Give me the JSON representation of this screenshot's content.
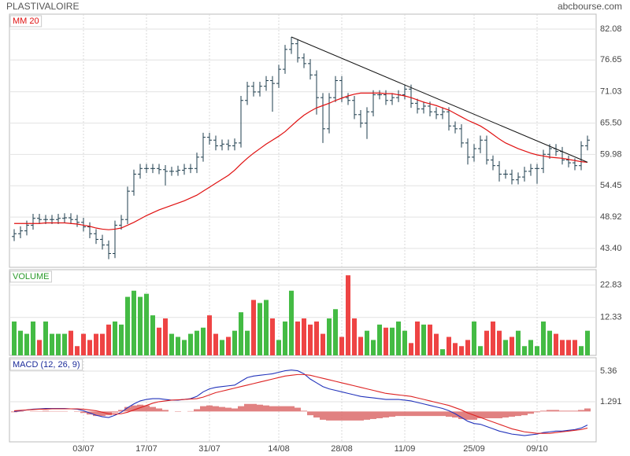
{
  "header": {
    "title": "PLASTIVALOIRE",
    "source": "abcbourse.com"
  },
  "chart_data": [
    {
      "type": "ohlc",
      "color": "#1d3c4c",
      "open": [
        45.5,
        46.0,
        46.5,
        47.5,
        48.7,
        48.5,
        48.5,
        48.5,
        48.7,
        48.8,
        48.5,
        48.0,
        47.2,
        46.0,
        45.0,
        44.0,
        42.5,
        47.5,
        48.5,
        53.5,
        56.5,
        57.5,
        57.5,
        57.5,
        57.3,
        57.0,
        57.0,
        57.2,
        57.5,
        57.5,
        59.5,
        63.0,
        62.5,
        61.5,
        61.8,
        61.5,
        62.0,
        69.5,
        72.0,
        71.0,
        72.0,
        73.0,
        72.5,
        75.0,
        78.5,
        79.5,
        77.0,
        76.0,
        74.0,
        70.0,
        64.5,
        70.0,
        73.0,
        70.0,
        69.5,
        67.0,
        65.5,
        67.5,
        70.5,
        70.5,
        69.5,
        70.0,
        70.5,
        71.5,
        69.0,
        68.0,
        68.5,
        67.5,
        67.0,
        67.5,
        65.0,
        64.5,
        62.0,
        59.5,
        61.0,
        62.5,
        59.0,
        58.0,
        56.5,
        56.5,
        55.5,
        56.0,
        57.0,
        57.5,
        57.5,
        60.0,
        61.0,
        60.5,
        59.0,
        58.5,
        58.0,
        61.5
      ],
      "high": [
        46.8,
        47.3,
        48.3,
        49.5,
        49.5,
        49.3,
        49.3,
        49.5,
        49.6,
        49.6,
        49.3,
        48.8,
        48.0,
        46.8,
        45.8,
        44.8,
        48.3,
        49.3,
        54.3,
        57.3,
        58.3,
        58.3,
        58.3,
        58.3,
        58.1,
        57.8,
        58.0,
        58.3,
        58.3,
        60.3,
        63.8,
        63.8,
        63.3,
        62.6,
        62.6,
        62.8,
        70.3,
        72.8,
        72.8,
        72.8,
        73.8,
        73.8,
        75.8,
        79.3,
        80.7,
        80.3,
        77.8,
        76.8,
        74.8,
        70.8,
        70.8,
        73.8,
        73.8,
        70.8,
        70.3,
        67.8,
        68.3,
        71.3,
        71.3,
        71.3,
        70.8,
        71.3,
        72.3,
        72.3,
        69.8,
        69.3,
        69.3,
        68.3,
        68.3,
        68.3,
        65.8,
        65.3,
        62.8,
        61.8,
        63.3,
        63.3,
        59.8,
        58.8,
        57.3,
        57.3,
        56.8,
        57.8,
        58.3,
        58.3,
        60.8,
        61.8,
        61.8,
        61.3,
        59.8,
        59.3,
        62.3,
        63.3
      ],
      "low": [
        44.7,
        45.2,
        45.7,
        46.7,
        47.7,
        47.7,
        47.7,
        47.7,
        47.9,
        47.7,
        47.2,
        46.4,
        45.2,
        44.2,
        43.2,
        41.5,
        41.7,
        46.7,
        47.7,
        52.7,
        55.7,
        56.7,
        56.7,
        56.5,
        54.5,
        56.2,
        56.2,
        56.4,
        56.7,
        56.7,
        58.7,
        61.7,
        60.7,
        60.7,
        60.7,
        60.7,
        61.2,
        68.7,
        70.2,
        70.2,
        71.2,
        67.5,
        71.7,
        74.2,
        77.7,
        76.2,
        75.2,
        73.2,
        67.0,
        62.0,
        63.7,
        69.2,
        69.2,
        68.7,
        66.2,
        64.7,
        62.7,
        66.7,
        69.7,
        68.7,
        68.7,
        69.2,
        69.7,
        68.2,
        67.2,
        67.2,
        66.7,
        66.2,
        66.2,
        64.2,
        63.7,
        61.2,
        58.2,
        58.7,
        60.2,
        58.2,
        57.2,
        55.2,
        55.7,
        54.7,
        54.7,
        55.2,
        56.2,
        54.8,
        56.7,
        59.2,
        59.7,
        58.2,
        57.7,
        57.2,
        57.2,
        60.7
      ],
      "close": [
        46.0,
        46.5,
        47.5,
        48.7,
        48.5,
        48.5,
        48.5,
        48.7,
        48.8,
        48.5,
        48.0,
        47.2,
        46.0,
        45.0,
        44.0,
        42.5,
        47.5,
        48.5,
        53.5,
        56.5,
        57.5,
        57.5,
        57.5,
        57.3,
        57.0,
        57.0,
        57.2,
        57.5,
        57.5,
        59.5,
        63.0,
        62.5,
        61.5,
        61.8,
        61.5,
        62.0,
        69.5,
        72.0,
        71.0,
        72.0,
        73.0,
        72.5,
        75.0,
        78.5,
        79.5,
        77.0,
        76.0,
        74.0,
        70.0,
        64.5,
        70.0,
        73.0,
        70.0,
        69.5,
        67.0,
        65.5,
        67.5,
        70.5,
        70.5,
        69.5,
        70.0,
        70.5,
        71.5,
        69.0,
        68.0,
        68.5,
        67.5,
        67.0,
        67.5,
        65.0,
        64.5,
        62.0,
        59.5,
        61.0,
        62.5,
        59.0,
        58.0,
        56.5,
        56.5,
        55.5,
        56.0,
        57.0,
        57.5,
        57.5,
        60.0,
        61.0,
        60.5,
        59.0,
        58.5,
        58.0,
        61.5,
        62.5
      ],
      "overlays": [
        {
          "name": "MM 20",
          "color": "#e01010",
          "values": [
            47.8,
            47.8,
            47.8,
            47.8,
            47.8,
            47.9,
            47.9,
            47.9,
            47.9,
            47.8,
            47.7,
            47.5,
            47.3,
            47.0,
            46.8,
            46.7,
            46.8,
            47.0,
            47.5,
            48.0,
            48.6,
            49.2,
            49.7,
            50.2,
            50.6,
            51.0,
            51.4,
            51.8,
            52.3,
            52.8,
            53.5,
            54.2,
            54.9,
            55.6,
            56.3,
            57.2,
            58.3,
            59.3,
            60.2,
            61.0,
            61.8,
            62.5,
            63.2,
            64.0,
            65.0,
            66.0,
            66.9,
            67.6,
            68.2,
            68.6,
            69.0,
            69.5,
            69.9,
            70.3,
            70.6,
            70.8,
            70.8,
            70.8,
            70.8,
            70.7,
            70.7,
            70.5,
            70.3,
            70.0,
            69.6,
            69.2,
            68.9,
            68.6,
            68.2,
            67.8,
            67.2,
            66.6,
            66.0,
            65.5,
            65.0,
            64.3,
            63.5,
            62.7,
            62.0,
            61.5,
            61.0,
            60.6,
            60.2,
            59.9,
            59.7,
            59.5,
            59.4,
            59.3,
            59.1,
            58.9,
            58.7,
            58.6
          ]
        }
      ],
      "trendline": {
        "color": "#111111",
        "x": [
          44,
          91
        ],
        "values": [
          80.7,
          58.6
        ]
      },
      "ylim": [
        40.07,
        84.72
      ],
      "yticks": [
        82.08,
        76.65,
        71.03,
        {
          "value": 65.5,
          "label": "65.50"
        },
        59.98,
        54.45,
        48.92,
        {
          "value": 43.4,
          "label": "43.40"
        }
      ],
      "xticks": [
        {
          "value": 11,
          "label": "03/07"
        },
        {
          "value": 21,
          "label": "17/07"
        },
        {
          "value": 31,
          "label": "31/07"
        },
        {
          "value": 42,
          "label": "14/08"
        },
        {
          "value": 52,
          "label": "28/08"
        },
        {
          "value": 62,
          "label": "11/09"
        },
        {
          "value": 73,
          "label": "25/09"
        },
        {
          "value": 83,
          "label": "09/10"
        }
      ],
      "grid": true
    },
    {
      "type": "bar",
      "title": "VOLUME",
      "up_color": "#44bb44",
      "down_color": "#ee4444",
      "values": [
        11,
        8,
        7,
        11,
        5,
        11,
        7,
        7,
        7,
        8,
        3,
        7,
        5,
        7,
        7,
        10,
        11,
        10,
        19,
        21,
        19,
        20,
        13,
        9,
        12,
        7,
        6,
        5,
        7,
        8,
        9,
        13,
        7,
        5,
        6,
        8,
        14,
        8,
        18,
        17,
        18,
        12,
        5,
        11,
        21,
        11,
        12,
        10,
        11,
        7,
        12,
        15,
        6,
        26,
        12,
        6,
        8,
        5,
        10,
        9,
        9,
        11,
        8,
        4,
        11,
        10,
        10,
        7,
        2,
        6,
        4,
        3,
        5,
        11,
        3,
        8,
        11,
        8,
        5,
        6,
        8,
        3,
        5,
        3,
        11,
        8,
        7,
        5,
        5,
        5,
        3,
        8
      ],
      "ylim": [
        0,
        27.83
      ],
      "yticks": [
        22.83,
        12.33
      ],
      "grid": true
    },
    {
      "type": "line",
      "title": "MACD (12, 26, 9)",
      "series": [
        {
          "color": "#2233bb",
          "values": [
            0.0,
            0.1,
            0.2,
            0.3,
            0.35,
            0.4,
            0.4,
            0.4,
            0.4,
            0.35,
            0.3,
            0.1,
            -0.2,
            -0.5,
            -0.7,
            -0.8,
            -0.5,
            -0.1,
            0.5,
            1.0,
            1.4,
            1.6,
            1.7,
            1.7,
            1.6,
            1.5,
            1.5,
            1.6,
            1.7,
            2.0,
            2.6,
            3.0,
            3.2,
            3.3,
            3.4,
            3.5,
            4.0,
            4.5,
            4.7,
            4.8,
            4.9,
            5.0,
            5.2,
            5.4,
            5.5,
            5.4,
            5.0,
            4.3,
            3.8,
            3.3,
            3.0,
            2.8,
            2.6,
            2.4,
            2.2,
            2.0,
            1.9,
            1.8,
            1.7,
            1.6,
            1.6,
            1.6,
            1.5,
            1.4,
            1.2,
            1.0,
            0.8,
            0.6,
            0.4,
            0.1,
            -0.3,
            -0.8,
            -1.3,
            -1.6,
            -1.7,
            -2.0,
            -2.3,
            -2.6,
            -2.8,
            -3.0,
            -3.1,
            -3.2,
            -3.1,
            -3.0,
            -2.8,
            -2.7,
            -2.6,
            -2.6,
            -2.5,
            -2.4,
            -2.2,
            -1.8
          ]
        },
        {
          "color": "#dd2222",
          "values": [
            0.1,
            0.15,
            0.2,
            0.25,
            0.3,
            0.3,
            0.35,
            0.35,
            0.35,
            0.35,
            0.35,
            0.3,
            0.2,
            0.1,
            -0.1,
            -0.3,
            -0.35,
            -0.3,
            -0.1,
            0.2,
            0.5,
            0.8,
            1.1,
            1.3,
            1.4,
            1.5,
            1.55,
            1.6,
            1.65,
            1.7,
            1.9,
            2.2,
            2.5,
            2.7,
            2.9,
            3.1,
            3.3,
            3.5,
            3.7,
            3.9,
            4.1,
            4.3,
            4.5,
            4.7,
            4.8,
            4.9,
            4.9,
            4.8,
            4.6,
            4.4,
            4.2,
            4.0,
            3.8,
            3.6,
            3.4,
            3.2,
            3.0,
            2.8,
            2.6,
            2.4,
            2.3,
            2.2,
            2.1,
            2.0,
            1.8,
            1.6,
            1.4,
            1.2,
            1.0,
            0.8,
            0.5,
            0.2,
            -0.2,
            -0.5,
            -0.8,
            -1.1,
            -1.4,
            -1.7,
            -2.0,
            -2.3,
            -2.5,
            -2.7,
            -2.8,
            -2.9,
            -2.9,
            -2.9,
            -2.8,
            -2.7,
            -2.6,
            -2.5,
            -2.4,
            -2.2
          ]
        }
      ],
      "histogram": {
        "color": "#dc6b6b",
        "values": [
          -0.1,
          -0.05,
          0.0,
          0.05,
          0.05,
          0.1,
          0.05,
          0.05,
          0.05,
          0.0,
          -0.05,
          -0.2,
          -0.4,
          -0.6,
          -0.6,
          -0.5,
          -0.15,
          0.2,
          0.6,
          0.8,
          0.9,
          0.8,
          0.6,
          0.4,
          0.2,
          0.0,
          -0.05,
          0.0,
          0.05,
          0.3,
          0.7,
          0.8,
          0.7,
          0.6,
          0.5,
          0.4,
          0.7,
          1.0,
          1.0,
          0.9,
          0.8,
          0.7,
          0.7,
          0.7,
          0.7,
          0.5,
          0.1,
          -0.5,
          -0.8,
          -1.1,
          -1.2,
          -1.2,
          -1.2,
          -1.2,
          -1.2,
          -1.2,
          -1.1,
          -1.0,
          -0.9,
          -0.8,
          -0.7,
          -0.6,
          -0.6,
          -0.6,
          -0.6,
          -0.6,
          -0.6,
          -0.6,
          -0.6,
          -0.7,
          -0.8,
          -1.0,
          -1.1,
          -1.1,
          -0.9,
          -0.9,
          -0.9,
          -0.9,
          -0.8,
          -0.7,
          -0.6,
          -0.5,
          -0.3,
          -0.1,
          0.1,
          0.2,
          0.2,
          0.1,
          0.1,
          0.1,
          0.2,
          0.4
        ]
      },
      "ylim": [
        -4.03,
        7.13
      ],
      "yticks": [
        5.36,
        1.291
      ],
      "grid": true
    }
  ]
}
